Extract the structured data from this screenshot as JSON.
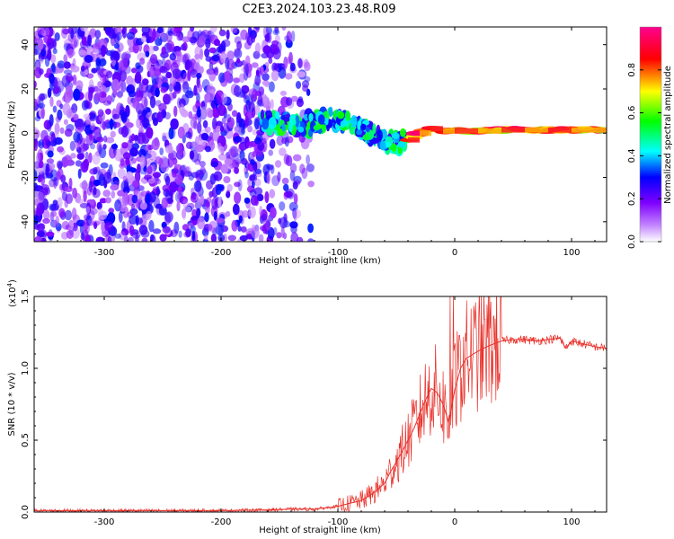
{
  "figure": {
    "title": "C2E3.2024.103.23.48.R09"
  },
  "chart_data": [
    {
      "type": "heatmap",
      "title": "C2E3.2024.103.23.48.R09",
      "xlabel": "Height of straight line (km)",
      "ylabel": "Frequency (Hz)",
      "xlim": [
        -360,
        130
      ],
      "ylim": [
        -49,
        48
      ],
      "x_ticks": [
        -300,
        -200,
        -100,
        0,
        100
      ],
      "x_tick_labels": [
        "-300",
        "-200",
        "-100",
        "0",
        "100"
      ],
      "y_ticks": [
        -40,
        -20,
        0,
        20,
        40
      ],
      "y_tick_labels": [
        "-40",
        "-20",
        "0",
        "20",
        "40"
      ],
      "colorbar": {
        "label": "Normalized spectral amplitude",
        "range": [
          0,
          1
        ],
        "ticks": [
          0.0,
          0.2,
          0.4,
          0.6,
          0.8
        ],
        "tick_labels": [
          "0.0",
          "0.2",
          "0.4",
          "0.6",
          "0.8"
        ],
        "colormap": [
          "#ffffff",
          "#8000ff",
          "#0000ff",
          "#00ffff",
          "#00ff00",
          "#ffff00",
          "#ff0000",
          "#ff0080"
        ]
      },
      "regions": [
        {
          "name": "noise",
          "x_range": [
            -360,
            -120
          ],
          "freq_range": [
            -49,
            48
          ],
          "amplitude": [
            0.05,
            0.3
          ]
        },
        {
          "name": "signal-onset",
          "x_range": [
            -165,
            -40
          ],
          "freq_range": [
            -10,
            12
          ],
          "amplitude": [
            0.2,
            0.6
          ]
        },
        {
          "name": "carrier",
          "x_range": [
            -40,
            130
          ],
          "freq_range": [
            -1,
            3
          ],
          "amplitude": [
            0.6,
            1.0
          ]
        }
      ],
      "carrier_track": {
        "x": [
          -165,
          -150,
          -130,
          -110,
          -90,
          -80,
          -70,
          -60,
          -50,
          -40,
          -30,
          -20,
          -10,
          0,
          20,
          40,
          60,
          80,
          100,
          130
        ],
        "freq": [
          6,
          4,
          3,
          6,
          5,
          2,
          0,
          -3,
          -4,
          -3,
          0,
          2,
          1,
          1,
          1,
          1.5,
          1.5,
          1.5,
          1.5,
          1.5
        ]
      },
      "grid": false,
      "legend": "none"
    },
    {
      "type": "line",
      "xlabel": "Height of straight line (km)",
      "ylabel": "SNR (10 * v/v)",
      "multiplier_label": "(x10",
      "multiplier_exponent": "4",
      "multiplier_close": ")",
      "xlim": [
        -360,
        130
      ],
      "ylim": [
        0,
        1.5
      ],
      "x_ticks": [
        -300,
        -200,
        -100,
        0,
        100
      ],
      "x_tick_labels": [
        "-300",
        "-200",
        "-100",
        "0",
        "100"
      ],
      "y_ticks": [
        0,
        0.5,
        1.0,
        1.5
      ],
      "y_tick_labels": [
        "0.0",
        "0.5",
        "1.0",
        "1.5"
      ],
      "series": [
        {
          "color": "#e8302a",
          "x": [
            -360,
            -300,
            -250,
            -200,
            -160,
            -140,
            -120,
            -110,
            -100,
            -90,
            -80,
            -70,
            -60,
            -55,
            -50,
            -45,
            -40,
            -35,
            -30,
            -25,
            -20,
            -15,
            -10,
            -5,
            0,
            5,
            10,
            20,
            30,
            40,
            50,
            60,
            70,
            80,
            90,
            95,
            100,
            110,
            120,
            130
          ],
          "y": [
            0.01,
            0.01,
            0.01,
            0.01,
            0.015,
            0.02,
            0.02,
            0.03,
            0.04,
            0.06,
            0.08,
            0.13,
            0.2,
            0.28,
            0.35,
            0.42,
            0.5,
            0.58,
            0.68,
            0.78,
            0.86,
            0.83,
            0.75,
            0.62,
            0.85,
            1.0,
            1.07,
            1.12,
            1.16,
            1.19,
            1.2,
            1.2,
            1.19,
            1.2,
            1.21,
            1.14,
            1.19,
            1.17,
            1.15,
            1.14
          ]
        }
      ],
      "grid": false,
      "legend": "none"
    }
  ]
}
